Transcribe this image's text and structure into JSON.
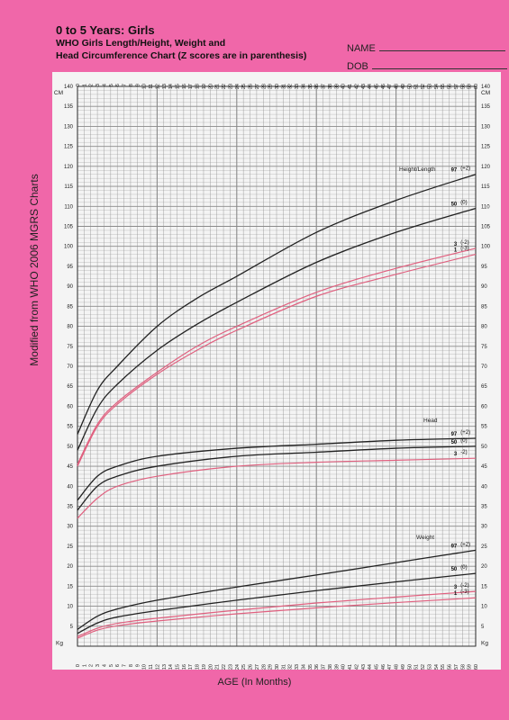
{
  "header": {
    "title": "0 to 5 Years: Girls",
    "subtitle_line1": "WHO Girls Length/Height, Weight and",
    "subtitle_line2": "Head Circumference Chart (Z scores are in parenthesis)",
    "name_label": "NAME",
    "dob_label": "DOB"
  },
  "side_label": "Modified from WHO 2006 MGRS Charts",
  "colors": {
    "background": "#f067a9",
    "paper": "#f4f4f4",
    "grid": "#8a8a8a",
    "black_curve": "#222222",
    "pink_curve": "#e0607f"
  },
  "chart_data": {
    "type": "line",
    "xlabel": "AGE (In Months)",
    "x_ticks": [
      "0",
      "1",
      "2",
      "3",
      "4",
      "5",
      "6",
      "7",
      "8",
      "9",
      "10",
      "11",
      "12",
      "13",
      "14",
      "15",
      "16",
      "17",
      "18",
      "19",
      "20",
      "21",
      "22",
      "23",
      "24",
      "25",
      "26",
      "27",
      "28",
      "29",
      "30",
      "31",
      "32",
      "33",
      "34",
      "35",
      "36",
      "37",
      "38",
      "39",
      "40",
      "41",
      "42",
      "43",
      "44",
      "45",
      "46",
      "47",
      "48",
      "49",
      "50",
      "51",
      "52",
      "53",
      "54",
      "55",
      "56",
      "57",
      "58",
      "59",
      "60"
    ],
    "xlim": [
      0,
      60
    ],
    "ylim": [
      0,
      140
    ],
    "y_ticks": [
      5,
      10,
      15,
      20,
      25,
      30,
      35,
      40,
      45,
      50,
      55,
      60,
      65,
      70,
      75,
      80,
      85,
      90,
      95,
      100,
      105,
      110,
      115,
      120,
      125,
      130,
      135,
      140
    ],
    "y_unit_top": "CM",
    "y_unit_bottom": "Kg",
    "grid": true,
    "groups": [
      {
        "label": "Height/Length",
        "series": [
          {
            "name": "97",
            "z": "(+2)",
            "color": "black",
            "x": [
              0,
              3,
              6,
              12,
              18,
              24,
              36,
              48,
              60
            ],
            "y": [
              53.0,
              64.0,
              70.0,
              80.0,
              87.0,
              92.5,
              103.5,
              111.5,
              118.0
            ]
          },
          {
            "name": "50",
            "z": "(0)",
            "color": "black",
            "x": [
              0,
              3,
              6,
              12,
              18,
              24,
              36,
              48,
              60
            ],
            "y": [
              49.0,
              59.5,
              65.5,
              74.0,
              80.5,
              86.0,
              96.0,
              103.5,
              109.5
            ]
          },
          {
            "name": "3",
            "z": "(-2)",
            "color": "pink",
            "x": [
              0,
              3,
              6,
              12,
              18,
              24,
              36,
              48,
              60
            ],
            "y": [
              45.5,
              55.5,
              61.0,
              68.5,
              75.0,
              80.0,
              88.5,
              94.5,
              99.5
            ]
          },
          {
            "name": "1",
            "z": "(-3)",
            "color": "pink",
            "x": [
              0,
              3,
              6,
              12,
              18,
              24,
              36,
              48,
              60
            ],
            "y": [
              45.0,
              55.0,
              60.5,
              68.0,
              74.0,
              79.0,
              87.5,
              93.0,
              98.0
            ]
          }
        ]
      },
      {
        "label": "Head",
        "series": [
          {
            "name": "97",
            "z": "(+2)",
            "color": "black",
            "x": [
              0,
              3,
              6,
              12,
              24,
              36,
              48,
              60
            ],
            "y": [
              36.5,
              42.5,
              45.0,
              47.5,
              49.5,
              50.5,
              51.5,
              52.0
            ]
          },
          {
            "name": "50",
            "z": "(0)",
            "color": "black",
            "x": [
              0,
              3,
              6,
              12,
              24,
              36,
              48,
              60
            ],
            "y": [
              34.0,
              40.0,
              42.5,
              45.0,
              47.5,
              48.5,
              49.5,
              50.0
            ]
          },
          {
            "name": "3",
            "z": "-2)",
            "color": "pink",
            "x": [
              0,
              3,
              6,
              12,
              24,
              36,
              48,
              60
            ],
            "y": [
              32.0,
              37.0,
              40.0,
              42.5,
              45.0,
              46.0,
              46.5,
              47.0
            ]
          }
        ]
      },
      {
        "label": "Weight",
        "series": [
          {
            "name": "97",
            "z": "(+2)",
            "color": "black",
            "x": [
              0,
              3,
              6,
              12,
              24,
              36,
              48,
              60
            ],
            "y": [
              4.2,
              7.5,
              9.3,
              11.5,
              14.8,
              17.8,
              20.9,
              24.0
            ]
          },
          {
            "name": "50",
            "z": "(0)",
            "color": "black",
            "x": [
              0,
              3,
              6,
              12,
              24,
              36,
              48,
              60
            ],
            "y": [
              3.2,
              5.8,
              7.3,
              8.9,
              11.5,
              13.9,
              16.1,
              18.2
            ]
          },
          {
            "name": "3",
            "z": "(-2)",
            "color": "pink",
            "x": [
              0,
              3,
              6,
              12,
              24,
              36,
              48,
              60
            ],
            "y": [
              2.4,
              4.5,
              5.7,
              7.0,
              9.0,
              10.8,
              12.3,
              13.7
            ]
          },
          {
            "name": "1",
            "z": "(-3)",
            "color": "pink",
            "x": [
              0,
              3,
              6,
              12,
              24,
              36,
              48,
              60
            ],
            "y": [
              2.0,
              4.0,
              5.1,
              6.3,
              8.1,
              9.6,
              10.9,
              12.1
            ]
          }
        ]
      }
    ]
  }
}
